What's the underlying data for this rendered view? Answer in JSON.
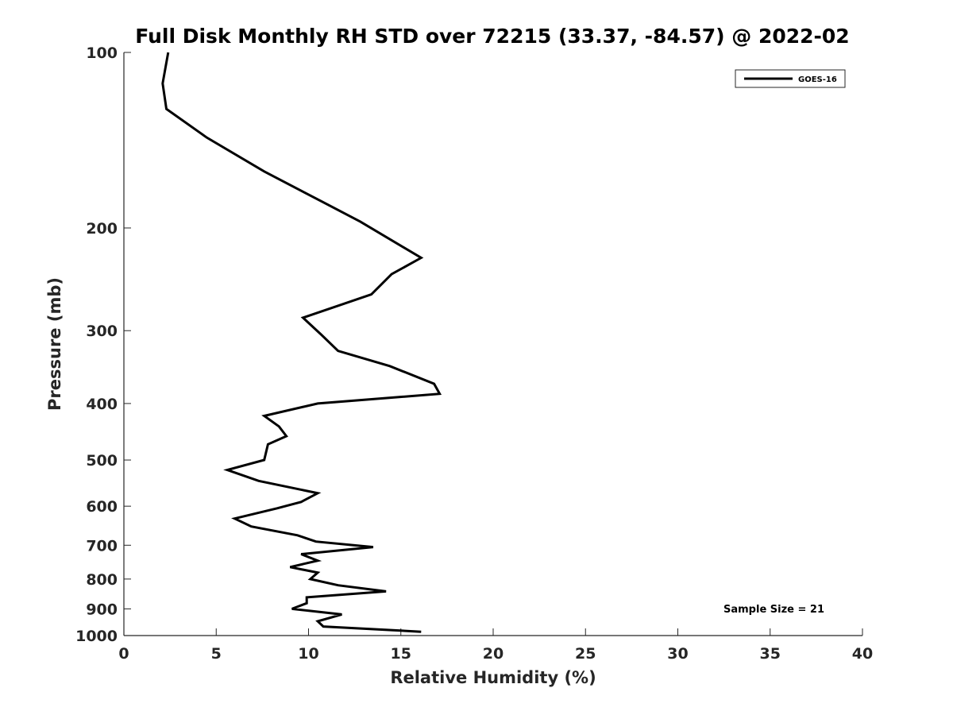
{
  "chart_data": {
    "type": "line",
    "title": "Full Disk Monthly RH STD over 72215 (33.37, -84.57) @ 2022-02",
    "xlabel": "Relative Humidity (%)",
    "ylabel": "Pressure (mb)",
    "xlim": [
      0,
      40
    ],
    "ylim": [
      100,
      1000
    ],
    "y_scale": "log",
    "y_reversed": true,
    "xticks": [
      0,
      5,
      10,
      15,
      20,
      25,
      30,
      35,
      40
    ],
    "yticks": [
      100,
      200,
      300,
      400,
      500,
      600,
      700,
      800,
      900,
      1000
    ],
    "grid": false,
    "legend_position": "top-right",
    "annotation": "Sample Size = 21",
    "series": [
      {
        "name": "GOES-16",
        "color": "#000000",
        "x": [
          2.4,
          2.1,
          2.3,
          4.5,
          7.6,
          12.8,
          16.1,
          14.5,
          13.4,
          9.7,
          10.7,
          11.6,
          14.4,
          16.8,
          17.1,
          10.5,
          7.6,
          8.4,
          8.8,
          7.8,
          7.6,
          5.6,
          7.3,
          10.5,
          9.6,
          8.3,
          6.0,
          6.9,
          9.4,
          10.4,
          13.5,
          9.6,
          10.5,
          9.0,
          10.5,
          10.1,
          11.6,
          14.2,
          9.9,
          9.9,
          9.1,
          11.8,
          10.5,
          10.8,
          16.1
        ],
        "y": [
          100,
          113,
          125,
          140,
          160,
          195,
          225,
          240,
          260,
          285,
          305,
          325,
          345,
          370,
          385,
          400,
          420,
          438,
          455,
          470,
          500,
          520,
          543,
          570,
          590,
          605,
          630,
          650,
          673,
          690,
          705,
          725,
          744,
          763,
          780,
          800,
          820,
          840,
          860,
          880,
          900,
          920,
          945,
          965,
          985
        ]
      }
    ]
  }
}
